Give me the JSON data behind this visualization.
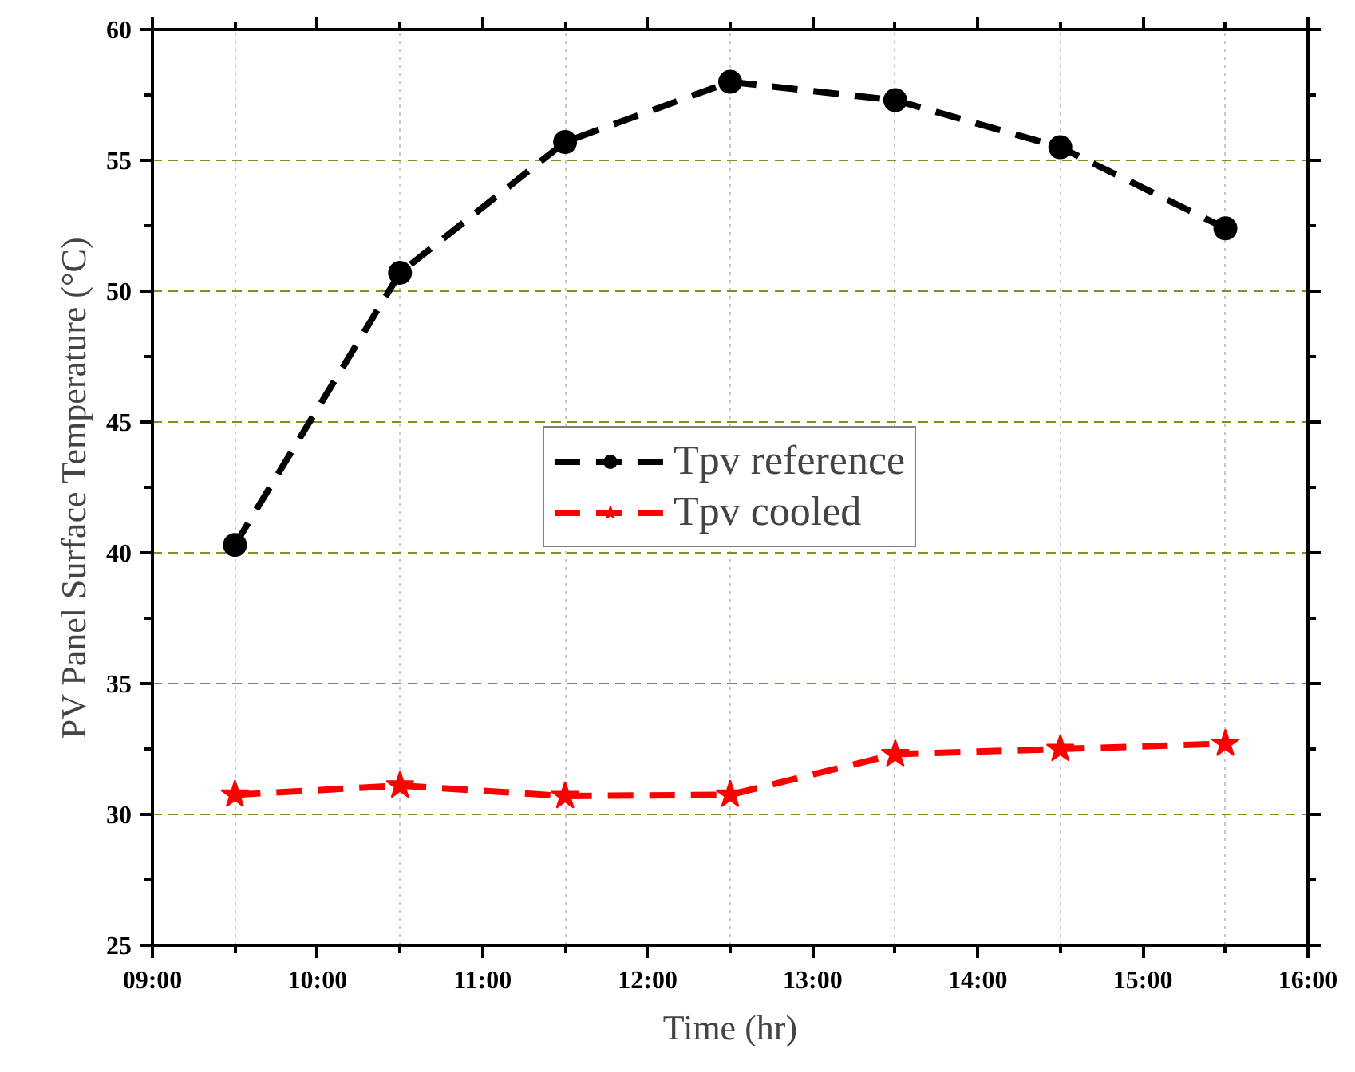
{
  "chart_data": {
    "type": "line",
    "xlabel": "Time (hr)",
    "ylabel": "PV Panel Surface Temperature (°C)",
    "x": [
      9.5,
      10.5,
      11.5,
      12.5,
      13.5,
      14.5,
      15.5
    ],
    "series": [
      {
        "name": "Tpv reference",
        "color": "#000000",
        "marker": "circle",
        "values": [
          40.3,
          50.7,
          55.7,
          58.0,
          57.3,
          55.5,
          52.4
        ]
      },
      {
        "name": "Tpv cooled",
        "color": "#ff0000",
        "marker": "star",
        "values": [
          30.75,
          31.1,
          30.7,
          30.75,
          32.3,
          32.5,
          32.7
        ]
      }
    ],
    "xlim": [
      9,
      16
    ],
    "xticks": [
      {
        "value": 9,
        "label": "09:00"
      },
      {
        "value": 9.5,
        "label": null
      },
      {
        "value": 10,
        "label": "10:00"
      },
      {
        "value": 10.5,
        "label": null
      },
      {
        "value": 11,
        "label": "11:00"
      },
      {
        "value": 11.5,
        "label": null
      },
      {
        "value": 12,
        "label": "12:00"
      },
      {
        "value": 12.5,
        "label": null
      },
      {
        "value": 13,
        "label": "13:00"
      },
      {
        "value": 13.5,
        "label": null
      },
      {
        "value": 14,
        "label": "14:00"
      },
      {
        "value": 14.5,
        "label": null
      },
      {
        "value": 15,
        "label": "15:00"
      },
      {
        "value": 15.5,
        "label": null
      },
      {
        "value": 16,
        "label": "16:00"
      }
    ],
    "ylim": [
      25,
      60
    ],
    "yticks": [
      25,
      {
        "value": 27.5,
        "label": null
      },
      30,
      {
        "value": 32.5,
        "label": null
      },
      35,
      {
        "value": 37.5,
        "label": null
      },
      40,
      {
        "value": 42.5,
        "label": null
      },
      45,
      {
        "value": 47.5,
        "label": null
      },
      50,
      {
        "value": 52.5,
        "label": null
      },
      55,
      {
        "value": 57.5,
        "label": null
      },
      60
    ],
    "grid": true,
    "legend": "center",
    "line_style": "dashed"
  }
}
